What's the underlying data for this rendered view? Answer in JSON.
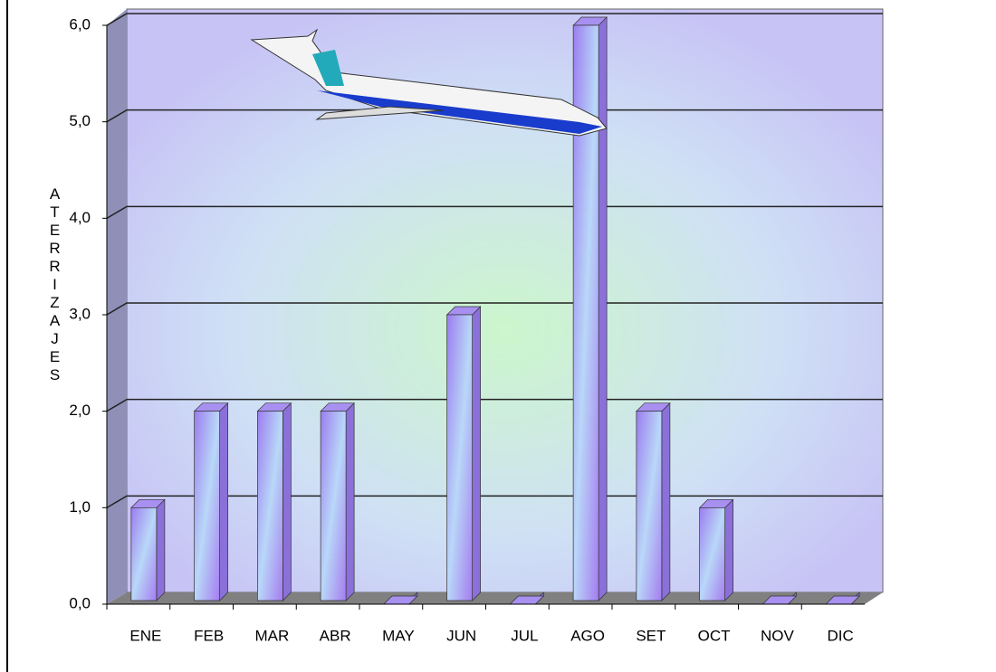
{
  "chart_data": {
    "type": "bar",
    "y_axis_label": "ATERRIZAJES",
    "categories": [
      "ENE",
      "FEB",
      "MAR",
      "ABR",
      "MAY",
      "JUN",
      "JUL",
      "AGO",
      "SET",
      "OCT",
      "NOV",
      "DIC"
    ],
    "values": [
      1,
      2,
      2,
      2,
      0,
      3,
      0,
      6,
      2,
      1,
      0,
      0
    ],
    "ylim": [
      0,
      6
    ],
    "yticks": [
      {
        "value": 0,
        "label": "0,0"
      },
      {
        "value": 1,
        "label": "1,0"
      },
      {
        "value": 2,
        "label": "2,0"
      },
      {
        "value": 3,
        "label": "3,0"
      },
      {
        "value": 4,
        "label": "4,0"
      },
      {
        "value": 5,
        "label": "5,0"
      },
      {
        "value": 6,
        "label": "6,0"
      }
    ],
    "grid": true
  }
}
